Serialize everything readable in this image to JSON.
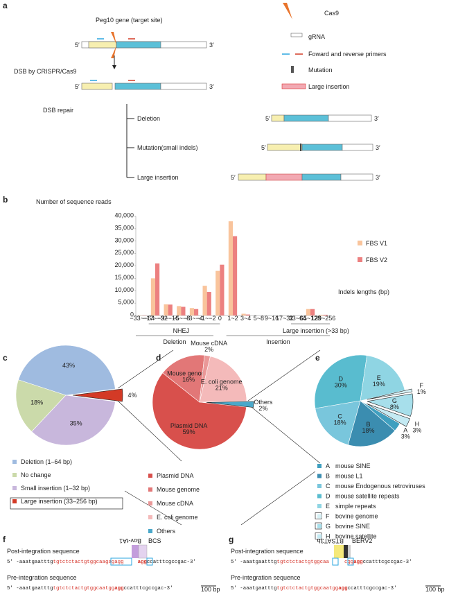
{
  "panels": {
    "a": "a",
    "b": "b",
    "c": "c",
    "d": "d",
    "e": "e",
    "f": "f",
    "g": "g"
  },
  "diagram": {
    "gene_title": "Peg10 gene (target site)",
    "dsb": "DSB by CRISPR/Cas9",
    "repair": "DSB repair",
    "outcomes": [
      "Deletion",
      "Mutation(small indels)",
      "Large insertion"
    ],
    "legend": [
      "Cas9",
      "gRNA",
      "Foward and reverse primers",
      "Mutation",
      "Large insertion"
    ],
    "five": "5′",
    "three": "3′"
  },
  "chart_data": [
    {
      "type": "bar",
      "y_label": "Number of sequence reads",
      "x_label": "Indels lengths (bp)",
      "categories": [
        "−33~−64",
        "−17~−32",
        "−9~−16",
        "−5~−8",
        "−3~−4",
        "−1~−2",
        "0",
        "1~2",
        "3~4",
        "5~8",
        "9~16",
        "17~32",
        "33~64",
        "65~128",
        "129~256"
      ],
      "series": [
        {
          "name": "FBS V1",
          "color": "#f9c49c",
          "values": [
            100,
            15000,
            4500,
            3800,
            3000,
            12000,
            18000,
            38000,
            700,
            0,
            0,
            0,
            0,
            2600,
            300
          ]
        },
        {
          "name": "FBS V2",
          "color": "#ec8080",
          "values": [
            100,
            21000,
            4400,
            3500,
            2600,
            9500,
            20500,
            32000,
            400,
            0,
            0,
            0,
            0,
            2600,
            300
          ]
        }
      ],
      "ylim": [
        0,
        40000
      ],
      "yticks": [
        0,
        {
          "value": 5000,
          "label": "5,000"
        },
        {
          "value": 10000,
          "label": "10,000"
        },
        {
          "value": 15000,
          "label": "15,000"
        },
        {
          "value": 20000,
          "label": "20,000"
        },
        {
          "value": 25000,
          "label": "25,000"
        },
        {
          "value": 30000,
          "label": "30,000"
        },
        {
          "value": 35000,
          "label": "35,000"
        },
        {
          "value": 40000,
          "label": "40,000"
        }
      ],
      "groups": [
        "NHEJ",
        "Large insertion (>33 bp)",
        "Deletion",
        "Insertion"
      ]
    },
    {
      "type": "pie",
      "categories": [
        "Deletion (1–64 bp)",
        "No change",
        "Small insertion (1–32 bp)",
        "Large insertion (33–256 bp)"
      ],
      "values": [
        43,
        18,
        35,
        4
      ],
      "value_labels": [
        "43%",
        "18%",
        "35%",
        "4%"
      ],
      "colors": [
        "#9fbbe0",
        "#cbdaaa",
        "#c8b7dc",
        "#d33a26"
      ],
      "explode": [
        false,
        false,
        false,
        true
      ]
    },
    {
      "type": "pie",
      "categories": [
        "Plasmid DNA",
        "Mouse genome",
        "Mouse cDNA",
        "E. coli genome",
        "Others"
      ],
      "values": [
        59,
        16,
        2,
        21,
        2
      ],
      "value_labels": [
        "59%",
        "16%",
        "2%",
        "21%",
        "2%"
      ],
      "colors": [
        "#d8504c",
        "#e27777",
        "#ea9898",
        "#f4baba",
        "#4aa8ca"
      ],
      "explode": [
        false,
        false,
        false,
        false,
        true
      ]
    },
    {
      "type": "pie",
      "categories": [
        "A",
        "B",
        "C",
        "D",
        "E",
        "F",
        "G",
        "H"
      ],
      "names": [
        "mouse SINE",
        "mouse L1",
        "mouse Endogenous retroviruses",
        "mouse satellite repeats",
        "simple repeats",
        "bovine genome",
        "bovine SINE",
        "bovine satellite"
      ],
      "values": [
        3,
        18,
        18,
        30,
        19,
        1,
        8,
        3
      ],
      "value_labels": [
        "3%",
        "18%",
        "18%",
        "30%",
        "19%",
        "1%",
        "8%",
        "3%"
      ],
      "colors": [
        "#3f9fbf",
        "#3b8db0",
        "#79c6dc",
        "#59bccf",
        "#8fd5e3",
        "#d6f0f5",
        "#a7dfeb",
        "#c4eaf3"
      ],
      "explode": [
        false,
        false,
        false,
        false,
        false,
        true,
        true,
        true
      ]
    }
  ],
  "seq_f": {
    "post_title": "Post-integration sequence",
    "pre_title": "Pre-integration sequence",
    "post": [
      "5′ -aaatgaatttg",
      "tgtctctactgtggcaa",
      "gagagg",
      "agg",
      "ccatttcgccgac-3′"
    ],
    "pre": [
      "5′ -aaatgaatttg",
      "tgtctctactgtggcaa",
      "tgg",
      "agg",
      "ccatttcgccgac-3′"
    ],
    "inserts": [
      "Bov-tA1",
      "BCS"
    ],
    "scale": "100 bp"
  },
  "seq_g": {
    "post_title": "Post-integration sequence",
    "pre_title": "Pre-integration sequence",
    "post": [
      "5′ -aaatgaatttg",
      "tgtctctactgtggcaa",
      "cgg",
      "agg",
      "ccatttcgccgac-3′"
    ],
    "pre": [
      "5′ -aaatgaatttg",
      "tgtctctactgtggcaa",
      "tgg",
      "agg",
      "ccatttcgccgac-3′"
    ],
    "inserts": [
      "BTSAT3b",
      "BERV2"
    ],
    "scale": "100 bp"
  }
}
